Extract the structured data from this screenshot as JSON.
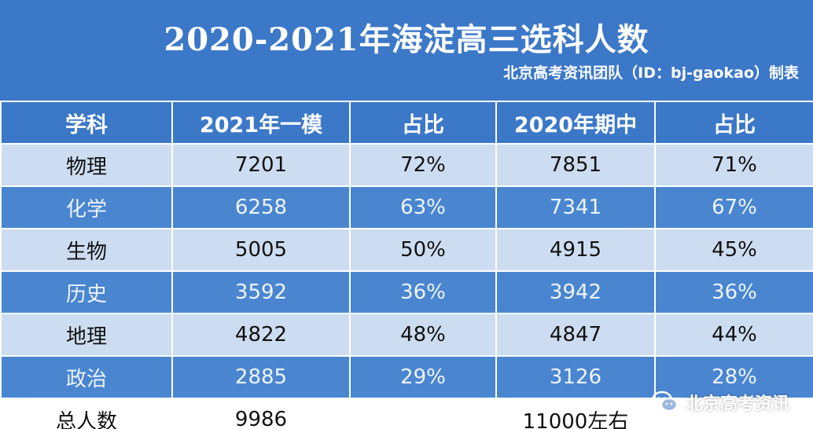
{
  "header": {
    "title": "2020-2021年海淀高三选科人数",
    "credit": "北京高考资讯团队（ID：bj-gaokao）制表"
  },
  "table": {
    "columns": [
      "学科",
      "2021年一模",
      "占比",
      "2020年期中",
      "占比"
    ],
    "rows": [
      [
        "物理",
        "7201",
        "72%",
        "7851",
        "71%"
      ],
      [
        "化学",
        "6258",
        "63%",
        "7341",
        "67%"
      ],
      [
        "生物",
        "5005",
        "50%",
        "4915",
        "45%"
      ],
      [
        "历史",
        "3592",
        "36%",
        "3942",
        "36%"
      ],
      [
        "地理",
        "4822",
        "48%",
        "4847",
        "44%"
      ],
      [
        "政治",
        "2885",
        "29%",
        "3126",
        "28%"
      ]
    ],
    "total": [
      "总人数",
      "9986",
      "",
      "11000左右",
      ""
    ]
  },
  "watermark": {
    "text": "北京高考资讯",
    "icon": "wechat-icon"
  },
  "colors": {
    "header_blue": "#3c78c8",
    "row_dark": "#4a86d0",
    "row_light": "#cdddf1"
  }
}
